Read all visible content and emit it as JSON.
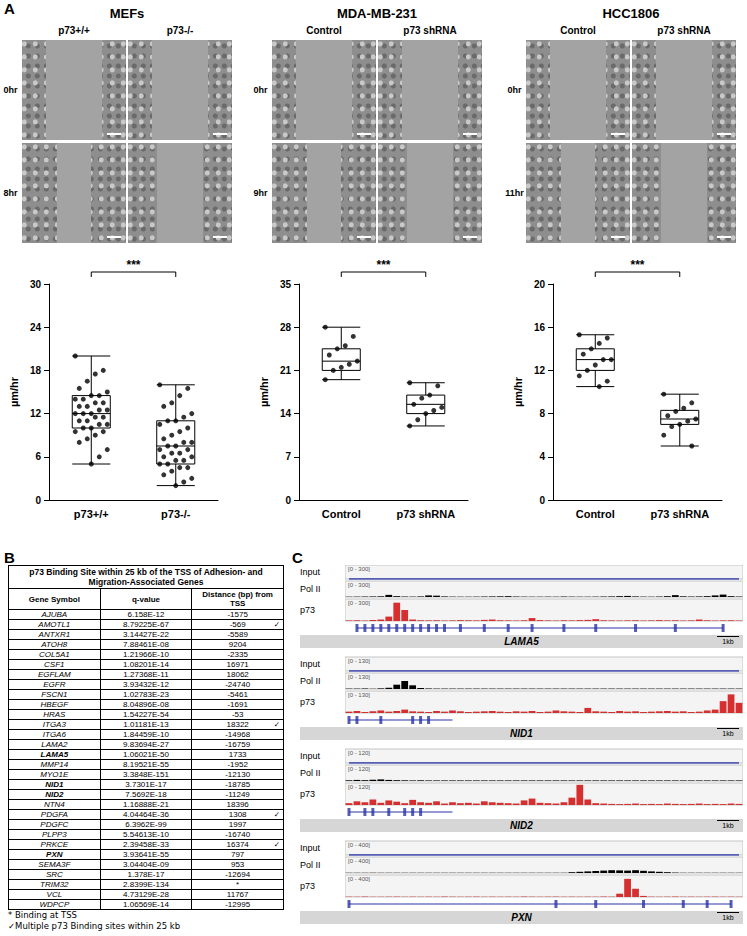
{
  "panel_labels": [
    "A",
    "B",
    "C"
  ],
  "chart_data": [
    {
      "type": "box",
      "title": "MEFs",
      "categories": [
        "p73+/+",
        "p73-/-"
      ],
      "values": [
        [
          20,
          18,
          17.5,
          16.5,
          15.5,
          15,
          14.5,
          14.5,
          14,
          14,
          13.5,
          13.5,
          13,
          13,
          12.5,
          12.5,
          12,
          12,
          12,
          11.5,
          11.5,
          11,
          11,
          10.5,
          10.5,
          10,
          10,
          9.5,
          9.5,
          9,
          8.5,
          8,
          7,
          6,
          5
        ],
        [
          16,
          15.5,
          14.5,
          13.5,
          13,
          12,
          11.5,
          11,
          11,
          10.5,
          10,
          9.5,
          9,
          8.5,
          8,
          8,
          7.5,
          7.5,
          7,
          7,
          6.5,
          6.5,
          6,
          6,
          5.5,
          5.5,
          5,
          5,
          4.5,
          4.5,
          4,
          3.5,
          3,
          2.5,
          2
        ]
      ],
      "box": [
        [
          5,
          10,
          12,
          14.5,
          20
        ],
        [
          2,
          5,
          7.5,
          11,
          16
        ]
      ],
      "ylabel": "µm/hr",
      "ylim": [
        0,
        30
      ],
      "yticks": [
        0,
        6,
        12,
        18,
        24,
        30
      ],
      "annotation": "***",
      "grid": false,
      "color": "#000000"
    },
    {
      "type": "box",
      "title": "MDA-MB-231",
      "categories": [
        "Control",
        "p73 shRNA"
      ],
      "values": [
        [
          28,
          26.5,
          25,
          24.5,
          23.5,
          22.5,
          22,
          21.5,
          21,
          19.5
        ],
        [
          19,
          18.5,
          17,
          16.5,
          15.5,
          15,
          14.5,
          14,
          13,
          12
        ]
      ],
      "box": [
        [
          19.5,
          21,
          22.5,
          24.5,
          28
        ],
        [
          12,
          14,
          15.5,
          17,
          19
        ]
      ],
      "ylabel": "µm/hr",
      "ylim": [
        0,
        35
      ],
      "yticks": [
        0,
        7,
        14,
        21,
        28,
        35
      ],
      "annotation": "***",
      "grid": false,
      "color": "#000000"
    },
    {
      "type": "box",
      "title": "HCC1806",
      "categories": [
        "Control",
        "p73 shRNA"
      ],
      "values": [
        [
          15.3,
          15,
          14.5,
          14,
          13.5,
          13,
          13,
          12.5,
          12,
          11.5,
          11,
          10.5
        ],
        [
          9.8,
          9,
          8.5,
          8.2,
          7.8,
          7.5,
          7.3,
          7,
          6.8,
          6,
          5
        ]
      ],
      "box": [
        [
          10.5,
          12,
          13,
          14,
          15.3
        ],
        [
          5,
          7,
          7.5,
          8.3,
          9.8
        ]
      ],
      "ylabel": "µm/hr",
      "ylim": [
        0,
        20
      ],
      "yticks": [
        0,
        4,
        8,
        12,
        16,
        20
      ],
      "annotation": "***",
      "grid": false,
      "color": "#000000"
    }
  ],
  "micrographs": [
    {
      "time_points": [
        "0hr",
        "8hr"
      ]
    },
    {
      "time_points": [
        "0hr",
        "9hr"
      ]
    },
    {
      "time_points": [
        "0hr",
        "11hr"
      ]
    }
  ],
  "table": {
    "title": "p73 Binding Site within 25 kb of the TSS of Adhesion- and Migration-Associated Genes",
    "header": [
      "Gene Symbol",
      "q-value",
      "Distance (bp) from TSS"
    ],
    "rows": [
      [
        "AJUBA",
        "6.158E-12",
        -1575
      ],
      [
        "AMOTL1",
        "8.79225E-67",
        -569,
        "✓"
      ],
      [
        "ANTXR1",
        "3.14427E-22",
        -5589
      ],
      [
        "ATOH8",
        "7.88461E-08",
        9204
      ],
      [
        "COL5A1",
        "1.21966E-10",
        -2335
      ],
      [
        "CSF1",
        "1.08201E-14",
        16971
      ],
      [
        "EGFLAM",
        "1.27368E-11",
        18062
      ],
      [
        "EGFR",
        "3.93432E-12",
        -24740
      ],
      [
        "FSCN1",
        "1.02783E-23",
        -5461
      ],
      [
        "HBEGF",
        "8.04896E-08",
        -1691
      ],
      [
        "HRAS",
        "1.54227E-54",
        -53
      ],
      [
        "ITGA3",
        "1.01181E-13",
        18322,
        "✓"
      ],
      [
        "ITGA6",
        "1.84459E-10",
        -14968
      ],
      [
        "LAMA2",
        "9.83694E-27",
        -16759
      ],
      [
        "LAMA5",
        "1.06021E-50",
        1733
      ],
      [
        "MMP14",
        "8.19521E-55",
        -1952
      ],
      [
        "MYO1E",
        "3.3848E-151",
        -12130
      ],
      [
        "NID1",
        "3.7301E-17",
        -18785
      ],
      [
        "NID2",
        "7.5692E-18",
        -11249
      ],
      [
        "NTN4",
        "1.16888E-21",
        18396
      ],
      [
        "PDGFA",
        "4.04464E-36",
        1308,
        "✓"
      ],
      [
        "PDGFC",
        "6.3962E-99",
        1997
      ],
      [
        "PLPP3",
        "5.54613E-10",
        -16740
      ],
      [
        "PRKCE",
        "2.39458E-33",
        16374,
        "✓"
      ],
      [
        "PXN",
        "3.93641E-55",
        797
      ],
      [
        "SEMA3F",
        "3.04404E-09",
        953
      ],
      [
        "SRC",
        "1.378E-17",
        -12694
      ],
      [
        "TRIM32",
        "2.8399E-134",
        "*"
      ],
      [
        "VCL",
        "4.73129E-28",
        11767
      ],
      [
        "WDPCP",
        "1.06569E-14",
        -12995
      ]
    ],
    "footnotes": [
      "* Binding at TSS",
      "✓Multiple p73 Binding sites within 25 kb"
    ]
  },
  "tracks": [
    {
      "gene": "LAMA5",
      "scale_label": "1kb",
      "gene_model": {
        "start": 1,
        "end": 47,
        "exons": [
          1,
          2,
          3,
          4,
          5,
          6,
          7,
          8,
          9,
          10,
          11,
          12,
          14,
          17,
          20,
          23,
          27,
          31,
          36,
          41,
          47
        ],
        "color": "#2b35a8"
      },
      "tracks": [
        {
          "name": "Input",
          "range_label": "[0 - 300]",
          "ylim": [
            0,
            300
          ],
          "type": "line",
          "color": "#2b35a8",
          "values": [
            0,
            0,
            0,
            0,
            0,
            0,
            0,
            0,
            0,
            0,
            0,
            0,
            0,
            0,
            0,
            0,
            0,
            0,
            0,
            0,
            0,
            0,
            0,
            0,
            0,
            0,
            0,
            0,
            0,
            0,
            0,
            0,
            0,
            0,
            0,
            0,
            0,
            0,
            0,
            0,
            0,
            0,
            0,
            0,
            0,
            0,
            0,
            0,
            0,
            0
          ]
        },
        {
          "name": "Pol II",
          "range_label": "[0 - 300]",
          "ylim": [
            0,
            300
          ],
          "type": "bar",
          "color": "#000000",
          "values": [
            5,
            6,
            8,
            10,
            12,
            40,
            15,
            8,
            6,
            10,
            30,
            25,
            10,
            6,
            5,
            5,
            6,
            8,
            10,
            12,
            15,
            8,
            6,
            5,
            5,
            6,
            5,
            8,
            6,
            5,
            5,
            6,
            8,
            10,
            15,
            20,
            10,
            6,
            5,
            8,
            15,
            35,
            12,
            8,
            10,
            15,
            30,
            45,
            15,
            8
          ]
        },
        {
          "name": "p73",
          "range_label": "[0 - 300]",
          "ylim": [
            0,
            300
          ],
          "type": "bar",
          "color": "#d62f2f",
          "values": [
            8,
            10,
            6,
            12,
            20,
            60,
            250,
            150,
            20,
            10,
            8,
            10,
            6,
            8,
            12,
            10,
            8,
            15,
            20,
            10,
            8,
            6,
            10,
            40,
            12,
            8,
            6,
            10,
            8,
            12,
            15,
            25,
            10,
            8,
            6,
            8,
            10,
            6,
            8,
            12,
            8,
            10,
            6,
            8,
            20,
            10,
            6,
            8,
            10,
            6
          ]
        }
      ]
    },
    {
      "gene": "NID1",
      "scale_label": "1kb",
      "gene_model": {
        "start": 0,
        "end": 13,
        "exons": [
          0,
          1,
          4,
          8,
          9,
          10
        ],
        "color": "#2b35a8"
      },
      "tracks": [
        {
          "name": "Input",
          "range_label": "[0 - 130]",
          "ylim": [
            0,
            130
          ],
          "type": "line",
          "color": "#2b35a8",
          "values": [
            0,
            0,
            0,
            0,
            0,
            0,
            0,
            0,
            0,
            0,
            0,
            0,
            0,
            0,
            0,
            0,
            0,
            0,
            0,
            0,
            0,
            0,
            0,
            0,
            0,
            0,
            0,
            0,
            0,
            0,
            0,
            0,
            0,
            0,
            0,
            0,
            0,
            0,
            0,
            0,
            0,
            0,
            0,
            0,
            0,
            0,
            0,
            0,
            0,
            0
          ]
        },
        {
          "name": "Pol II",
          "range_label": "[0 - 130]",
          "ylim": [
            0,
            130
          ],
          "type": "bar",
          "color": "#000000",
          "values": [
            3,
            3,
            4,
            3,
            5,
            10,
            35,
            65,
            30,
            8,
            4,
            3,
            3,
            3,
            3,
            3,
            3,
            3,
            3,
            3,
            3,
            3,
            3,
            3,
            3,
            3,
            3,
            3,
            3,
            3,
            3,
            3,
            3,
            3,
            3,
            3,
            3,
            3,
            3,
            3,
            3,
            3,
            3,
            3,
            3,
            3,
            3,
            3,
            3,
            3
          ]
        },
        {
          "name": "p73",
          "range_label": "[0 - 130]",
          "ylim": [
            0,
            130
          ],
          "type": "bar",
          "color": "#d62f2f",
          "values": [
            8,
            12,
            6,
            10,
            15,
            8,
            12,
            20,
            10,
            8,
            6,
            12,
            8,
            15,
            10,
            6,
            8,
            10,
            12,
            8,
            6,
            10,
            8,
            12,
            6,
            8,
            15,
            10,
            8,
            6,
            30,
            10,
            8,
            6,
            12,
            8,
            10,
            6,
            8,
            10,
            12,
            8,
            10,
            6,
            8,
            15,
            20,
            70,
            110,
            60
          ]
        }
      ]
    },
    {
      "gene": "NID2",
      "scale_label": "1kb",
      "gene_model": {
        "start": 0,
        "end": 13,
        "exons": [
          0,
          2,
          3,
          5,
          7,
          8,
          9
        ],
        "color": "#2b35a8"
      },
      "tracks": [
        {
          "name": "Input",
          "range_label": "[0 - 120]",
          "ylim": [
            0,
            120
          ],
          "type": "line",
          "color": "#2b35a8",
          "values": [
            0,
            0,
            0,
            0,
            0,
            0,
            0,
            0,
            0,
            0,
            0,
            0,
            0,
            0,
            0,
            0,
            0,
            0,
            0,
            0,
            0,
            0,
            0,
            0,
            0,
            0,
            0,
            0,
            0,
            0,
            0,
            0,
            0,
            0,
            0,
            0,
            0,
            0,
            0,
            0,
            0,
            0,
            0,
            0,
            0,
            0,
            0,
            0,
            0,
            0
          ]
        },
        {
          "name": "Pol II",
          "range_label": "[0 - 120]",
          "ylim": [
            0,
            120
          ],
          "type": "bar",
          "color": "#000000",
          "values": [
            5,
            8,
            6,
            10,
            12,
            8,
            6,
            5,
            4,
            5,
            4,
            4,
            4,
            4,
            4,
            4,
            4,
            4,
            4,
            4,
            4,
            4,
            4,
            4,
            4,
            4,
            4,
            4,
            4,
            4,
            4,
            4,
            4,
            4,
            4,
            4,
            4,
            4,
            4,
            4,
            4,
            4,
            4,
            4,
            4,
            4,
            4,
            4,
            4,
            4
          ]
        },
        {
          "name": "p73",
          "range_label": "[0 - 120]",
          "ylim": [
            0,
            120
          ],
          "type": "bar",
          "color": "#d62f2f",
          "values": [
            10,
            20,
            15,
            30,
            12,
            25,
            18,
            10,
            28,
            15,
            12,
            20,
            8,
            15,
            10,
            12,
            8,
            20,
            15,
            12,
            10,
            8,
            25,
            35,
            12,
            10,
            8,
            15,
            40,
            110,
            30,
            10,
            8,
            6,
            5,
            6,
            8,
            5,
            6,
            5,
            8,
            6,
            5,
            6,
            8,
            5,
            6,
            5,
            8,
            6
          ]
        }
      ]
    },
    {
      "gene": "PXN",
      "scale_label": "1kb",
      "gene_model": {
        "start": 0,
        "end": 48,
        "exons": [
          0,
          26,
          31,
          37,
          42,
          45,
          48
        ],
        "color": "#2b35a8"
      },
      "tracks": [
        {
          "name": "Input",
          "range_label": "[0 - 400]",
          "ylim": [
            0,
            400
          ],
          "type": "line",
          "color": "#2b35a8",
          "values": [
            0,
            0,
            0,
            0,
            0,
            0,
            0,
            0,
            0,
            0,
            0,
            0,
            0,
            0,
            0,
            0,
            0,
            0,
            0,
            0,
            0,
            0,
            0,
            0,
            0,
            0,
            0,
            0,
            0,
            0,
            0,
            0,
            0,
            0,
            0,
            0,
            0,
            0,
            0,
            0,
            0,
            0,
            0,
            0,
            0,
            0,
            0,
            0,
            0,
            0
          ]
        },
        {
          "name": "Pol II",
          "range_label": "[0 - 400]",
          "ylim": [
            0,
            400
          ],
          "type": "bar",
          "color": "#000000",
          "values": [
            5,
            5,
            5,
            5,
            5,
            5,
            5,
            5,
            5,
            5,
            5,
            5,
            5,
            5,
            5,
            5,
            5,
            5,
            5,
            5,
            5,
            5,
            5,
            5,
            5,
            5,
            5,
            5,
            20,
            30,
            40,
            50,
            60,
            70,
            65,
            60,
            70,
            55,
            40,
            30,
            20,
            10,
            5,
            5,
            5,
            5,
            5,
            5,
            5,
            5
          ]
        },
        {
          "name": "p73",
          "range_label": "[0 - 400]",
          "ylim": [
            0,
            400
          ],
          "type": "bar",
          "color": "#d62f2f",
          "values": [
            6,
            5,
            8,
            6,
            5,
            6,
            7,
            5,
            6,
            5,
            6,
            5,
            8,
            6,
            5,
            6,
            7,
            5,
            6,
            5,
            6,
            5,
            8,
            6,
            5,
            6,
            7,
            5,
            6,
            5,
            6,
            5,
            8,
            6,
            60,
            330,
            150,
            20,
            6,
            5,
            6,
            8,
            5,
            6,
            5,
            6,
            7,
            5,
            6,
            5
          ]
        }
      ]
    }
  ]
}
